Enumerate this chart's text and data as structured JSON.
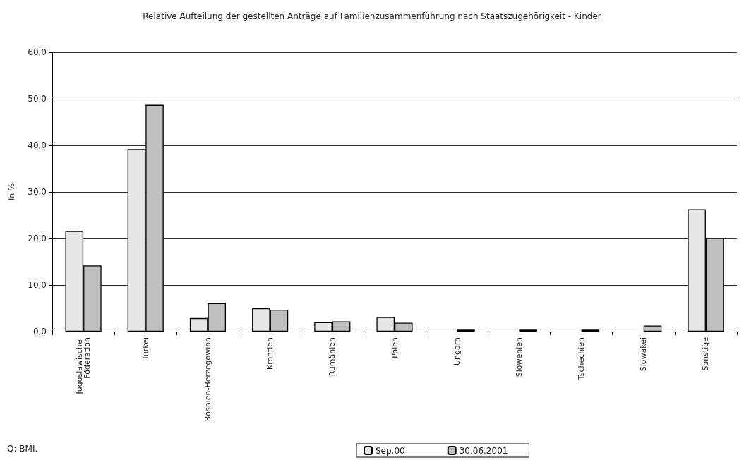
{
  "chart_data": {
    "type": "bar",
    "title": "Relative Aufteilung der gestellten Anträge auf Familienzusammenführung nach Staatszugehörigkeit - Kinder",
    "ylabel": "In %",
    "categories": [
      "Jugoslawische Föderation",
      "Türkei",
      "Bosnien-Herzegowina",
      "Kroatien",
      "Rumänien",
      "Polen",
      "Ungarn",
      "Slowenien",
      "Tschechien",
      "Slowakei",
      "Sonstige"
    ],
    "series": [
      {
        "name": "Sep.00",
        "color": "#e6e6e6",
        "values": [
          21.6,
          39.2,
          2.9,
          5.0,
          2.0,
          3.1,
          null,
          null,
          null,
          null,
          26.3
        ]
      },
      {
        "name": "30.06.2001",
        "color": "#bfbfbf",
        "values": [
          14.2,
          48.7,
          6.1,
          4.7,
          2.2,
          1.9,
          0.4,
          0.4,
          0.4,
          1.3,
          20.1
        ]
      }
    ],
    "ylim": [
      0,
      60
    ],
    "yticks": [
      {
        "value": 0,
        "label": "0,0"
      },
      {
        "value": 10,
        "label": "10,0"
      },
      {
        "value": 20,
        "label": "20,0"
      },
      {
        "value": 30,
        "label": "30,0"
      },
      {
        "value": 40,
        "label": "40,0"
      },
      {
        "value": 50,
        "label": "50,0"
      },
      {
        "value": 60,
        "label": "60,0"
      }
    ],
    "grid": "y",
    "legend": "bottom",
    "annotations": [
      "Q: BMI."
    ]
  }
}
